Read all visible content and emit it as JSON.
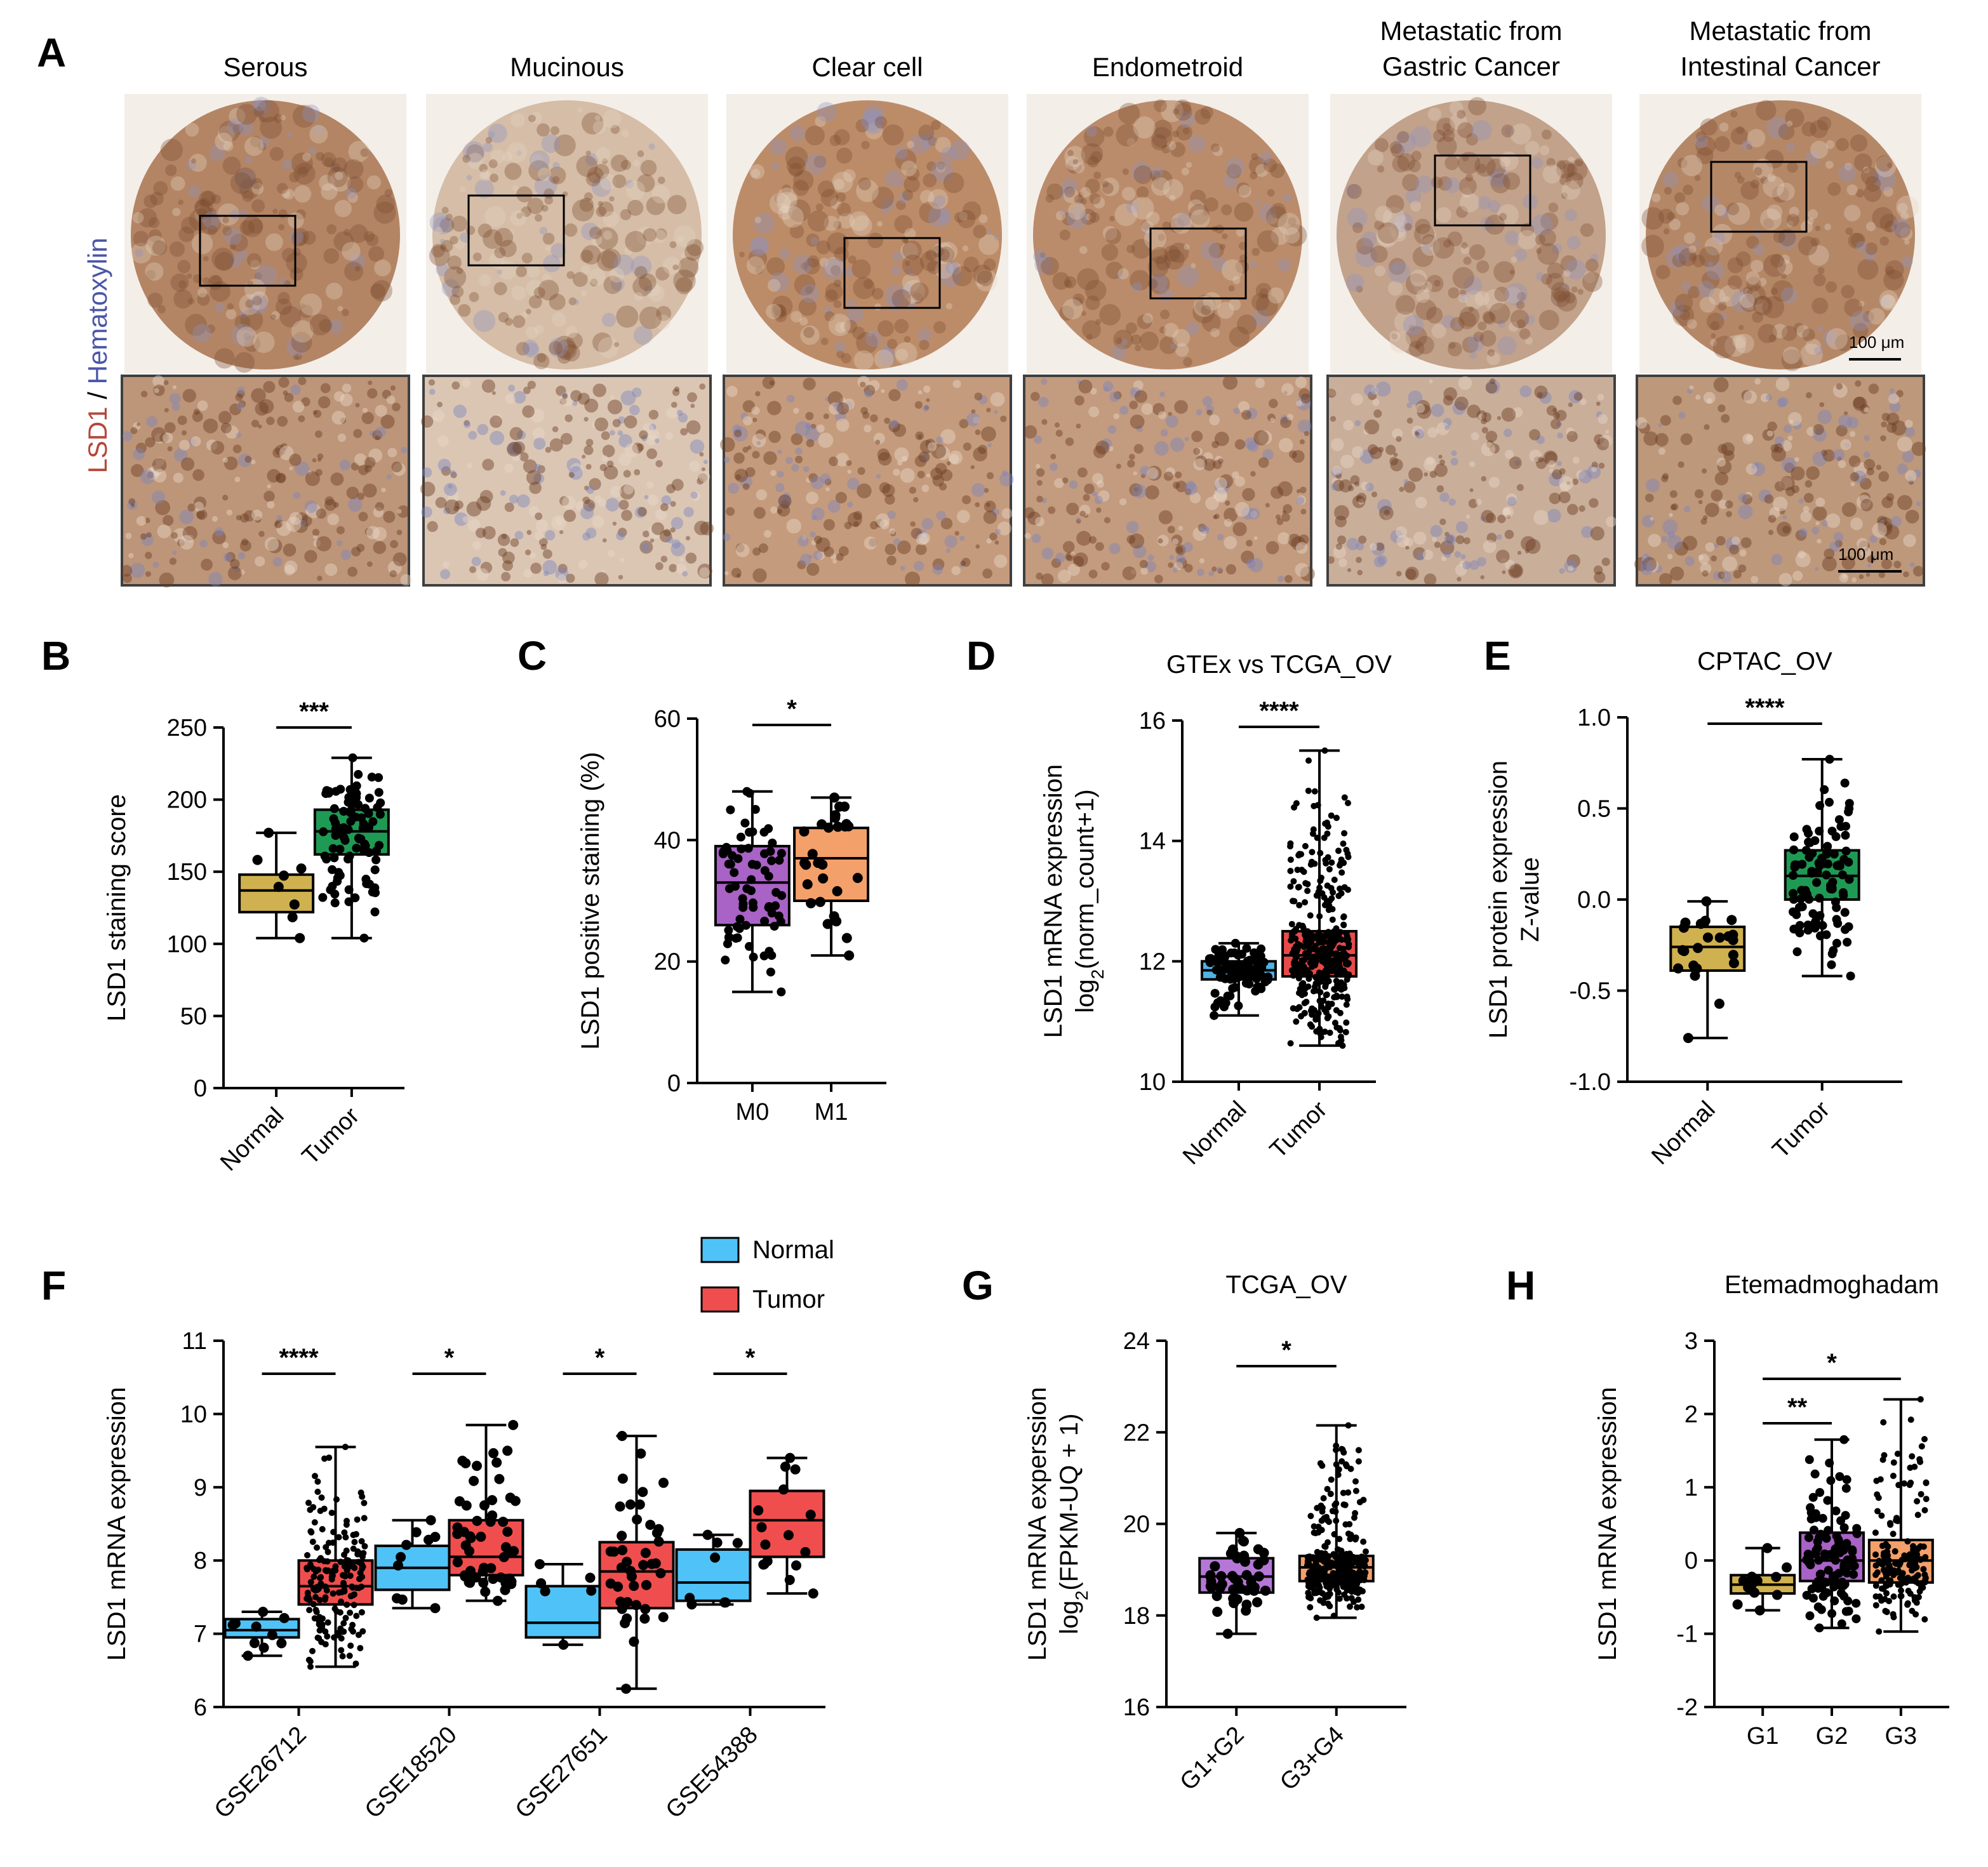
{
  "panel_a": {
    "letter": "A",
    "ylabel_lsd1": "LSD1",
    "ylabel_sep": " / ",
    "ylabel_hema": "Hematoxylin",
    "columns": [
      {
        "title_lines": [
          "Serous"
        ]
      },
      {
        "title_lines": [
          "Mucinous"
        ]
      },
      {
        "title_lines": [
          "Clear cell"
        ]
      },
      {
        "title_lines": [
          "Endometroid"
        ]
      },
      {
        "title_lines": [
          "Metastatic from",
          "Gastric Cancer"
        ]
      },
      {
        "title_lines": [
          "Metastatic from",
          "Intestinal Cancer"
        ]
      }
    ],
    "scale_bar_top": "100 μm",
    "scale_bar_bottom": "100 μm",
    "colors": {
      "lsd1": "#b5473a",
      "hematoxylin": "#4a56a8",
      "stain": "#b07d5a",
      "background": "#efe4d8"
    }
  },
  "chart_data": [
    {
      "id": "B",
      "letter": "B",
      "type": "box",
      "title": "",
      "ylabel_lines": [
        "LSD1 staining score"
      ],
      "ylim": [
        0,
        250
      ],
      "yticks": [
        "0",
        "50",
        "100",
        "150",
        "200",
        "250"
      ],
      "categories": [
        "Normal",
        "Tumor"
      ],
      "boxes": [
        {
          "name": "Normal",
          "color": "#cfb150",
          "min": 104,
          "q1": 122,
          "median": 137,
          "q3": 148,
          "max": 177,
          "n": 8
        },
        {
          "name": "Tumor",
          "color": "#1f9a55",
          "min": 104,
          "q1": 162,
          "median": 178,
          "q3": 193,
          "max": 229,
          "n": 90
        }
      ],
      "significance": [
        {
          "from": 0,
          "to": 1,
          "label": "***"
        }
      ]
    },
    {
      "id": "C",
      "letter": "C",
      "type": "box",
      "title": "",
      "ylabel_lines": [
        "LSD1 positive staining (%)"
      ],
      "ylim": [
        0,
        60
      ],
      "yticks": [
        "0",
        "20",
        "40",
        "60"
      ],
      "categories": [
        "M0",
        "M1"
      ],
      "boxes": [
        {
          "name": "M0",
          "color": "#a962c6",
          "min": 15,
          "q1": 26,
          "median": 33,
          "q3": 39,
          "max": 48,
          "n": 70
        },
        {
          "name": "M1",
          "color": "#f4a06a",
          "min": 21,
          "q1": 30,
          "median": 37,
          "q3": 42,
          "max": 47,
          "n": 28
        }
      ],
      "significance": [
        {
          "from": 0,
          "to": 1,
          "label": "*"
        }
      ]
    },
    {
      "id": "D",
      "letter": "D",
      "type": "box",
      "title": "GTEx vs TCGA_OV",
      "ylabel_lines": [
        "LSD1 mRNA expression",
        "log2(norm_count+1)"
      ],
      "ylim": [
        10,
        16
      ],
      "yticks": [
        "10",
        "12",
        "14",
        "16"
      ],
      "categories": [
        "Normal",
        "Tumor"
      ],
      "boxes": [
        {
          "name": "Normal",
          "color": "#4fb3e3",
          "min": 11.1,
          "q1": 11.7,
          "median": 11.85,
          "q3": 12.0,
          "max": 12.3,
          "n": 90
        },
        {
          "name": "Tumor",
          "color": "#e84a4a",
          "min": 10.6,
          "q1": 11.75,
          "median": 12.1,
          "q3": 12.5,
          "max": 15.5,
          "n": 400
        }
      ],
      "significance": [
        {
          "from": 0,
          "to": 1,
          "label": "****"
        }
      ]
    },
    {
      "id": "E",
      "letter": "E",
      "type": "box",
      "title": "CPTAC_OV",
      "ylabel_lines": [
        "LSD1 protein expression",
        "Z-value"
      ],
      "ylim": [
        -1.0,
        1.0
      ],
      "yticks": [
        "-1.0",
        "-0.5",
        "0.0",
        "0.5",
        "1.0"
      ],
      "categories": [
        "Normal",
        "Tumor"
      ],
      "boxes": [
        {
          "name": "Normal",
          "color": "#cfb150",
          "min": -0.76,
          "q1": -0.39,
          "median": -0.26,
          "q3": -0.15,
          "max": -0.01,
          "n": 22
        },
        {
          "name": "Tumor",
          "color": "#1f9a55",
          "min": -0.42,
          "q1": 0.0,
          "median": 0.13,
          "q3": 0.27,
          "max": 0.77,
          "n": 100
        }
      ],
      "significance": [
        {
          "from": 0,
          "to": 1,
          "label": "****"
        }
      ]
    },
    {
      "id": "F",
      "letter": "F",
      "type": "box",
      "title": "",
      "ylabel_lines": [
        "LSD1 mRNA expression"
      ],
      "ylim": [
        6,
        11
      ],
      "yticks": [
        "6",
        "7",
        "8",
        "9",
        "10",
        "11"
      ],
      "categories": [
        "GSE26712",
        "GSE18520",
        "GSE27651",
        "GSE54388"
      ],
      "legend": [
        {
          "name": "Normal",
          "color": "#4fc3f7"
        },
        {
          "name": "Tumor",
          "color": "#f04e4e"
        }
      ],
      "boxes": [
        {
          "name": "Normal",
          "group": 0,
          "color": "#4fc3f7",
          "min": 6.7,
          "q1": 6.95,
          "median": 7.05,
          "q3": 7.2,
          "max": 7.3,
          "n": 10
        },
        {
          "name": "Tumor",
          "group": 0,
          "color": "#f04e4e",
          "min": 6.55,
          "q1": 7.4,
          "median": 7.65,
          "q3": 8.0,
          "max": 9.55,
          "n": 185
        },
        {
          "name": "Normal",
          "group": 1,
          "color": "#4fc3f7",
          "min": 7.35,
          "q1": 7.6,
          "median": 7.9,
          "q3": 8.2,
          "max": 8.55,
          "n": 10
        },
        {
          "name": "Tumor",
          "group": 1,
          "color": "#f04e4e",
          "min": 7.45,
          "q1": 7.8,
          "median": 8.05,
          "q3": 8.55,
          "max": 9.85,
          "n": 53
        },
        {
          "name": "Normal",
          "group": 2,
          "color": "#4fc3f7",
          "min": 6.85,
          "q1": 6.95,
          "median": 7.15,
          "q3": 7.65,
          "max": 7.95,
          "n": 6
        },
        {
          "name": "Tumor",
          "group": 2,
          "color": "#f04e4e",
          "min": 6.25,
          "q1": 7.35,
          "median": 7.85,
          "q3": 8.25,
          "max": 9.7,
          "n": 41
        },
        {
          "name": "Normal",
          "group": 3,
          "color": "#4fc3f7",
          "min": 7.4,
          "q1": 7.45,
          "median": 7.7,
          "q3": 8.15,
          "max": 8.35,
          "n": 8
        },
        {
          "name": "Tumor",
          "group": 3,
          "color": "#f04e4e",
          "min": 7.55,
          "q1": 8.05,
          "median": 8.55,
          "q3": 8.95,
          "max": 9.4,
          "n": 16
        }
      ],
      "significance": [
        {
          "group": 0,
          "label": "****"
        },
        {
          "group": 1,
          "label": "*"
        },
        {
          "group": 2,
          "label": "*"
        },
        {
          "group": 3,
          "label": "*"
        }
      ]
    },
    {
      "id": "G",
      "letter": "G",
      "type": "box",
      "title": "TCGA_OV",
      "ylabel_lines": [
        "LSD1 mRNA experssion",
        "log2(FPKM-UQ + 1)"
      ],
      "ylim": [
        16,
        24
      ],
      "yticks": [
        "16",
        "18",
        "20",
        "22",
        "24"
      ],
      "categories": [
        "G1+G2",
        "G3+G4"
      ],
      "boxes": [
        {
          "name": "G1+G2",
          "color": "#b577d6",
          "min": 17.6,
          "q1": 18.5,
          "median": 18.85,
          "q3": 19.25,
          "max": 19.8,
          "n": 45
        },
        {
          "name": "G3+G4",
          "color": "#f4a06a",
          "min": 17.95,
          "q1": 18.75,
          "median": 19.05,
          "q3": 19.3,
          "max": 22.15,
          "n": 330
        }
      ],
      "significance": [
        {
          "from": 0,
          "to": 1,
          "label": "*"
        }
      ]
    },
    {
      "id": "H",
      "letter": "H",
      "type": "box",
      "title": "Etemadmoghadam",
      "ylabel_lines": [
        "LSD1 mRNA expression"
      ],
      "ylim": [
        -2,
        3
      ],
      "yticks": [
        "-2",
        "-1",
        "0",
        "1",
        "2",
        "3"
      ],
      "categories": [
        "G1",
        "G2",
        "G3"
      ],
      "boxes": [
        {
          "name": "G1",
          "color": "#cfb150",
          "min": -0.68,
          "q1": -0.45,
          "median": -0.33,
          "q3": -0.2,
          "max": 0.17,
          "n": 12
        },
        {
          "name": "G2",
          "color": "#a962c6",
          "min": -0.92,
          "q1": -0.28,
          "median": 0.0,
          "q3": 0.38,
          "max": 1.65,
          "n": 110
        },
        {
          "name": "G3",
          "color": "#f4a06a",
          "min": -0.97,
          "q1": -0.3,
          "median": 0.0,
          "q3": 0.28,
          "max": 2.2,
          "n": 170
        }
      ],
      "significance": [
        {
          "from": 0,
          "to": 1,
          "label": "**",
          "level": 0
        },
        {
          "from": 0,
          "to": 2,
          "label": "*",
          "level": 1
        }
      ]
    }
  ]
}
